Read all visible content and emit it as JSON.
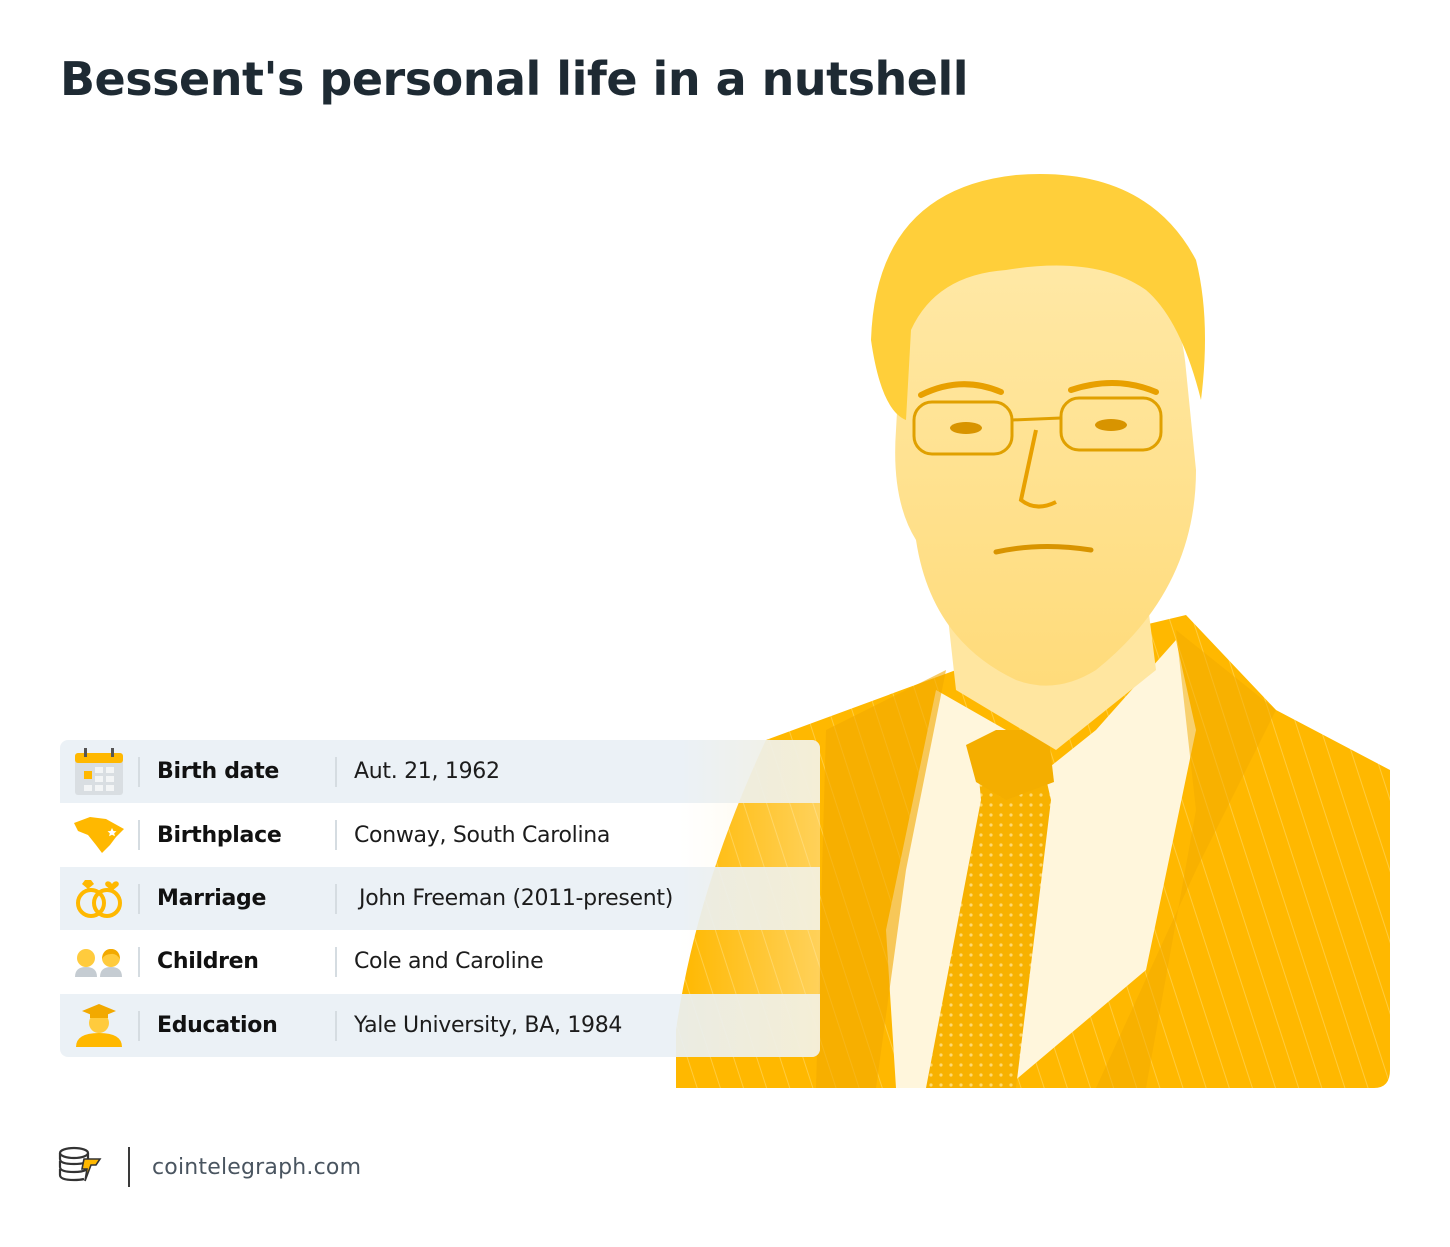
{
  "title": "Bessent's personal life in a nutshell",
  "rows": [
    {
      "label": "Birth date",
      "value": "Aut. 21, 1962",
      "icon": "calendar-icon"
    },
    {
      "label": "Birthplace",
      "value": "Conway, South Carolina",
      "icon": "south-carolina-map-icon"
    },
    {
      "label": "Marriage",
      "value": "John Freeman (2011-present)",
      "icon": "wedding-rings-icon"
    },
    {
      "label": "Children",
      "value": "Cole and Caroline",
      "icon": "children-icon"
    },
    {
      "label": "Education",
      "value": "Yale University, BA, 1984",
      "icon": "graduate-icon"
    }
  ],
  "footer": {
    "brand": "cointelegraph.com",
    "logo_icon": "cointelegraph-logo-icon"
  },
  "colors": {
    "accent": "#FFB800",
    "title": "#1e2a33",
    "row_shade": "#e9f0f5"
  }
}
